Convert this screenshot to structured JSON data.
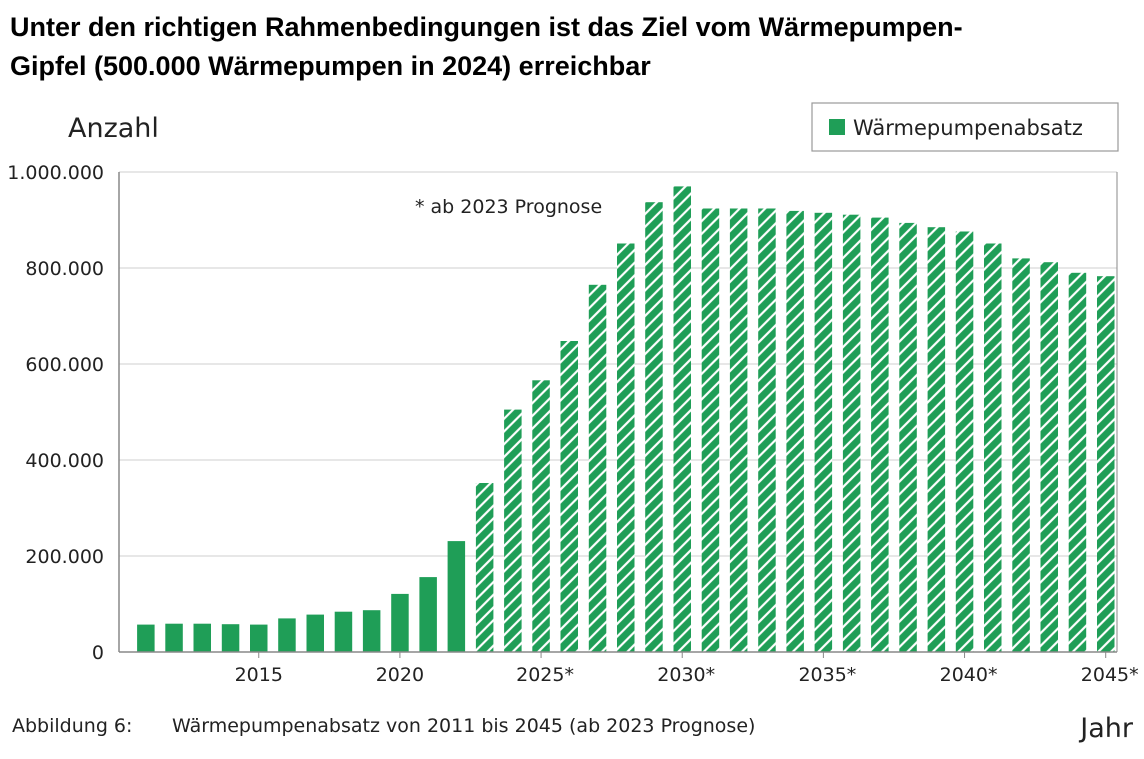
{
  "headline": {
    "line1": "Unter den richtigen Rahmenbedingungen ist das Ziel vom Wärmepumpen-",
    "line2": "Gipfel (500.000 Wärmepumpen in 2024) erreichbar"
  },
  "caption": {
    "number": "Abbildung 6:",
    "text": "Wärmepumpenabsatz von 2011 bis 2045 (ab 2023 Prognose)"
  },
  "chart_data": {
    "type": "bar",
    "ylabel": "Anzahl",
    "xlabel": "Jahr",
    "annotation": "* ab 2023 Prognose",
    "legend": {
      "label": "Wärmepumpenabsatz",
      "position": "top-right"
    },
    "bar_color": "#1f9e57",
    "grid": true,
    "ylim": [
      0,
      1000000
    ],
    "y_ticks": [
      {
        "value": 0,
        "label": "0"
      },
      {
        "value": 200000,
        "label": "200.000"
      },
      {
        "value": 400000,
        "label": "400.000"
      },
      {
        "value": 600000,
        "label": "600.000"
      },
      {
        "value": 800000,
        "label": "800.000"
      },
      {
        "value": 1000000,
        "label": "1.000.000"
      }
    ],
    "x_ticks": [
      {
        "year": 2015,
        "label": "2015"
      },
      {
        "year": 2020,
        "label": "2020"
      },
      {
        "year": 2025,
        "label": "2025*"
      },
      {
        "year": 2030,
        "label": "2030*"
      },
      {
        "year": 2035,
        "label": "2035*"
      },
      {
        "year": 2040,
        "label": "2040*"
      },
      {
        "year": 2045,
        "label": "2045*"
      }
    ],
    "forecast_from": 2023,
    "categories": [
      2011,
      2012,
      2013,
      2014,
      2015,
      2016,
      2017,
      2018,
      2019,
      2020,
      2021,
      2022,
      2023,
      2024,
      2025,
      2026,
      2027,
      2028,
      2029,
      2030,
      2031,
      2032,
      2033,
      2034,
      2035,
      2036,
      2037,
      2038,
      2039,
      2040,
      2041,
      2042,
      2043,
      2044,
      2045
    ],
    "values": [
      57000,
      59000,
      59000,
      58000,
      57000,
      70000,
      78000,
      84000,
      87000,
      121000,
      156000,
      231000,
      352000,
      505000,
      566000,
      648000,
      765000,
      851000,
      937000,
      970000,
      924000,
      924000,
      924000,
      919000,
      915000,
      911000,
      905000,
      894000,
      885000,
      876000,
      851000,
      820000,
      812000,
      790000,
      783000
    ]
  }
}
